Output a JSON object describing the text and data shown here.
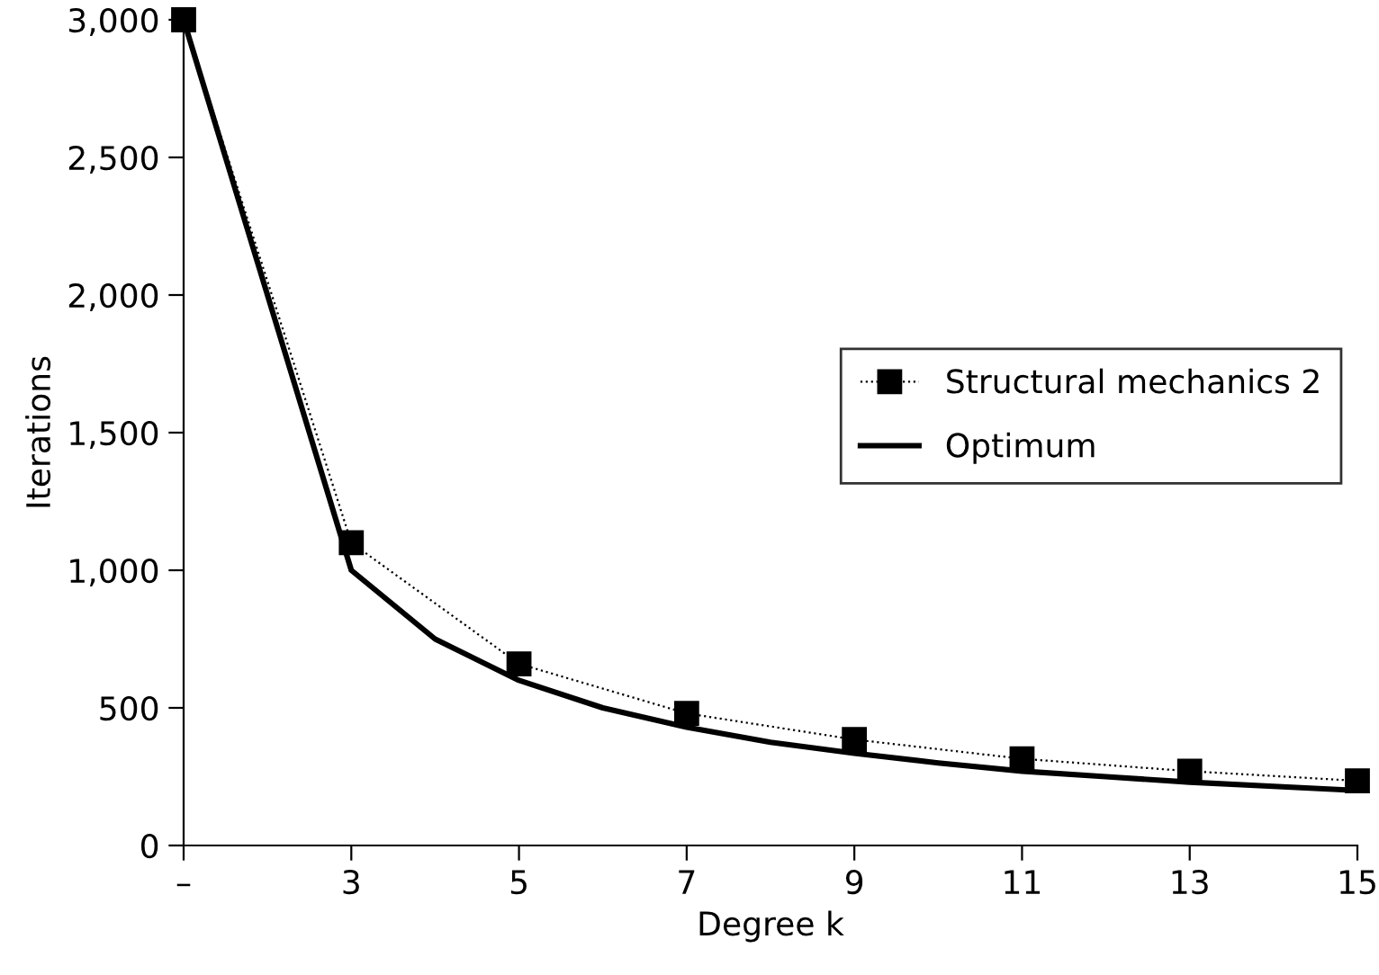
{
  "chart_data": {
    "type": "line",
    "xlabel": "Degree k",
    "ylabel": "Iterations",
    "xlim": [
      1,
      15
    ],
    "xticks": [
      {
        "value": 1,
        "label": "–"
      },
      3,
      5,
      7,
      9,
      11,
      13,
      15
    ],
    "ylim": [
      0,
      3000
    ],
    "yticks": [
      {
        "value": 0,
        "label": "0"
      },
      {
        "value": 500,
        "label": "500"
      },
      {
        "value": 1000,
        "label": "1,000"
      },
      {
        "value": 1500,
        "label": "1,500"
      },
      {
        "value": 2000,
        "label": "2,000"
      },
      {
        "value": 2500,
        "label": "2,500"
      },
      {
        "value": 3000,
        "label": "3,000"
      }
    ],
    "grid": false,
    "legend": "right",
    "series": [
      {
        "name": "Structural mechanics 2",
        "color": "#000000",
        "marker": "square",
        "line_style": "dotted",
        "x": [
          1,
          3,
          5,
          7,
          9,
          11,
          13,
          15
        ],
        "values": [
          3000,
          1100,
          660,
          480,
          385,
          315,
          270,
          235
        ]
      },
      {
        "name": "Optimum",
        "color": "#000000",
        "marker": "none",
        "line_style": "solid",
        "x": [
          1,
          3,
          4,
          5,
          6,
          7,
          8,
          9,
          10,
          11,
          12,
          13,
          14,
          15
        ],
        "values": [
          3000,
          1000,
          750,
          600,
          500,
          430,
          375,
          335,
          300,
          270,
          250,
          230,
          215,
          200
        ]
      }
    ]
  }
}
